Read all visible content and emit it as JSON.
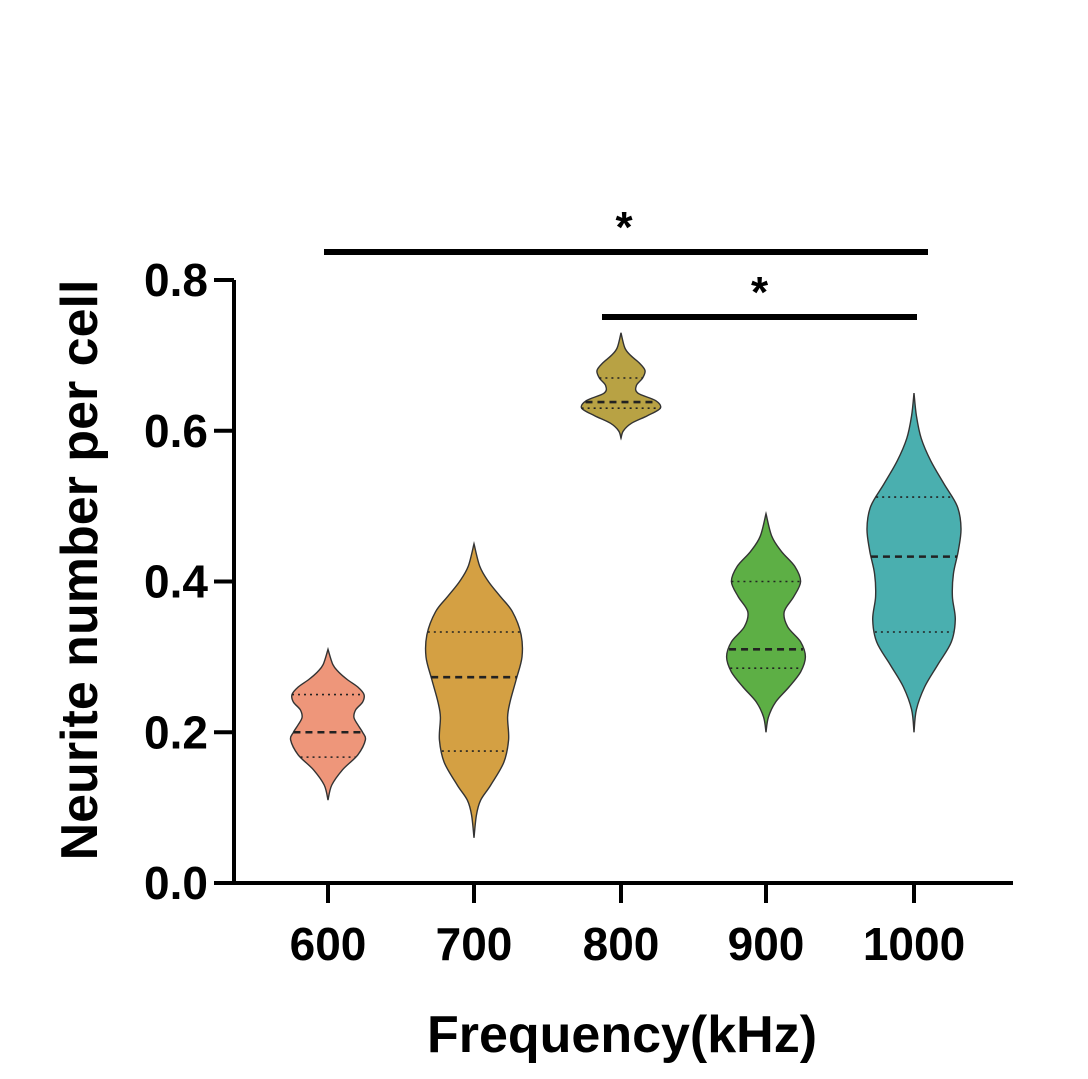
{
  "chart_data": {
    "type": "violin",
    "xlabel": "Frequency(kHz)",
    "ylabel": "Neurite number per cell",
    "ylim": [
      0,
      0.8
    ],
    "y_ticks": [
      "0.0",
      "0.2",
      "0.4",
      "0.6",
      "0.8"
    ],
    "y_tick_values": [
      0,
      0.2,
      0.4,
      0.6,
      0.8
    ],
    "categories": [
      "600",
      "700",
      "800",
      "900",
      "1000"
    ],
    "violins": [
      {
        "category": "600",
        "color": "#EE967A",
        "min": 0.11,
        "max": 0.31,
        "median": 0.2,
        "q1": 0.167,
        "q3": 0.25,
        "profile": [
          [
            0.11,
            0.0
          ],
          [
            0.13,
            0.08
          ],
          [
            0.15,
            0.3
          ],
          [
            0.17,
            0.62
          ],
          [
            0.19,
            0.78
          ],
          [
            0.2,
            0.72
          ],
          [
            0.21,
            0.62
          ],
          [
            0.22,
            0.54
          ],
          [
            0.23,
            0.58
          ],
          [
            0.24,
            0.72
          ],
          [
            0.25,
            0.75
          ],
          [
            0.26,
            0.62
          ],
          [
            0.27,
            0.4
          ],
          [
            0.28,
            0.22
          ],
          [
            0.29,
            0.1
          ],
          [
            0.31,
            0.0
          ]
        ]
      },
      {
        "category": "700",
        "color": "#D4A043",
        "min": 0.06,
        "max": 0.45,
        "median": 0.273,
        "q1": 0.175,
        "q3": 0.333,
        "profile": [
          [
            0.06,
            0.0
          ],
          [
            0.09,
            0.05
          ],
          [
            0.11,
            0.14
          ],
          [
            0.13,
            0.35
          ],
          [
            0.16,
            0.62
          ],
          [
            0.19,
            0.72
          ],
          [
            0.22,
            0.7
          ],
          [
            0.24,
            0.75
          ],
          [
            0.27,
            0.88
          ],
          [
            0.3,
            1.0
          ],
          [
            0.33,
            0.98
          ],
          [
            0.36,
            0.8
          ],
          [
            0.38,
            0.55
          ],
          [
            0.4,
            0.3
          ],
          [
            0.42,
            0.12
          ],
          [
            0.45,
            0.0
          ]
        ]
      },
      {
        "category": "800",
        "color": "#B8A244",
        "min": 0.59,
        "max": 0.73,
        "median": 0.638,
        "q1": 0.63,
        "q3": 0.67,
        "profile": [
          [
            0.59,
            0.0
          ],
          [
            0.6,
            0.05
          ],
          [
            0.61,
            0.22
          ],
          [
            0.62,
            0.55
          ],
          [
            0.63,
            0.82
          ],
          [
            0.64,
            0.72
          ],
          [
            0.65,
            0.35
          ],
          [
            0.66,
            0.32
          ],
          [
            0.67,
            0.45
          ],
          [
            0.68,
            0.5
          ],
          [
            0.69,
            0.38
          ],
          [
            0.7,
            0.2
          ],
          [
            0.71,
            0.08
          ],
          [
            0.73,
            0.0
          ]
        ]
      },
      {
        "category": "900",
        "color": "#5DAF45",
        "min": 0.2,
        "max": 0.49,
        "median": 0.31,
        "q1": 0.285,
        "q3": 0.4,
        "profile": [
          [
            0.2,
            0.0
          ],
          [
            0.22,
            0.05
          ],
          [
            0.24,
            0.2
          ],
          [
            0.26,
            0.48
          ],
          [
            0.28,
            0.72
          ],
          [
            0.3,
            0.82
          ],
          [
            0.32,
            0.72
          ],
          [
            0.34,
            0.45
          ],
          [
            0.36,
            0.38
          ],
          [
            0.38,
            0.58
          ],
          [
            0.4,
            0.72
          ],
          [
            0.42,
            0.6
          ],
          [
            0.44,
            0.32
          ],
          [
            0.46,
            0.12
          ],
          [
            0.49,
            0.0
          ]
        ]
      },
      {
        "category": "1000",
        "color": "#4AAFAF",
        "min": 0.2,
        "max": 0.65,
        "median": 0.433,
        "q1": 0.333,
        "q3": 0.512,
        "profile": [
          [
            0.2,
            0.0
          ],
          [
            0.23,
            0.05
          ],
          [
            0.26,
            0.22
          ],
          [
            0.29,
            0.5
          ],
          [
            0.32,
            0.78
          ],
          [
            0.35,
            0.86
          ],
          [
            0.38,
            0.8
          ],
          [
            0.41,
            0.82
          ],
          [
            0.44,
            0.92
          ],
          [
            0.47,
            0.98
          ],
          [
            0.5,
            0.9
          ],
          [
            0.53,
            0.62
          ],
          [
            0.56,
            0.35
          ],
          [
            0.59,
            0.15
          ],
          [
            0.62,
            0.05
          ],
          [
            0.65,
            0.0
          ]
        ]
      }
    ],
    "significance": [
      {
        "from": "600",
        "to": "1000",
        "label": "*"
      },
      {
        "from": "800",
        "to": "1000",
        "label": "*"
      }
    ]
  }
}
